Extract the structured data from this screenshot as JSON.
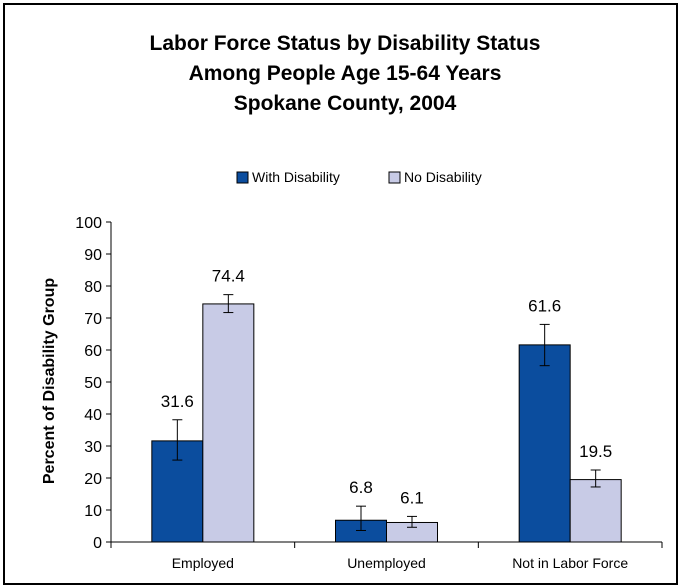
{
  "chart_data": {
    "type": "bar",
    "title_lines": [
      "Labor Force Status by Disability Status",
      "Among People Age 15-64 Years",
      "Spokane County, 2004"
    ],
    "xlabel": "",
    "ylabel": "Percent of Disability Group",
    "categories": [
      "Employed",
      "Unemployed",
      "Not in Labor Force"
    ],
    "series": [
      {
        "name": "With Disability",
        "color": "#0b4d9e",
        "values": [
          31.6,
          6.8,
          61.6
        ],
        "err_low": [
          25.6,
          3.6,
          55.1
        ],
        "err_high": [
          38.2,
          11.2,
          68.0
        ]
      },
      {
        "name": "No Disability",
        "color": "#c8cbe6",
        "values": [
          74.4,
          6.1,
          19.5
        ],
        "err_low": [
          71.7,
          4.6,
          17.2
        ],
        "err_high": [
          77.3,
          8.0,
          22.5
        ]
      }
    ],
    "ylim": [
      0,
      100
    ],
    "yticks": [
      0,
      10,
      20,
      30,
      40,
      50,
      60,
      70,
      80,
      90,
      100
    ],
    "legend_position": "top-center",
    "grid": false
  }
}
